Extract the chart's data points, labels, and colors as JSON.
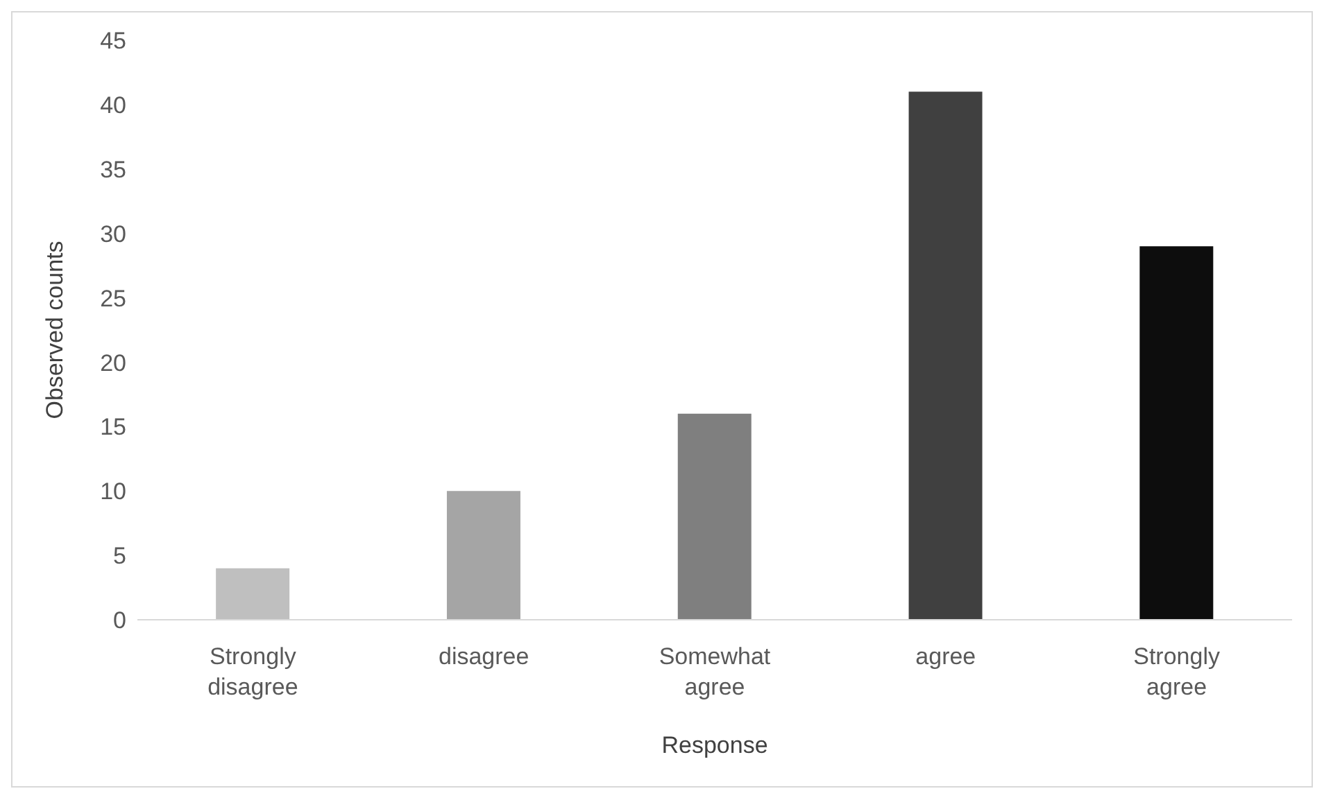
{
  "chart_data": {
    "type": "bar",
    "xlabel": "Response",
    "ylabel": "Observed counts",
    "categories": [
      "Strongly disagree",
      "disagree",
      "Somewhat agree",
      "agree",
      "Strongly agree"
    ],
    "values": [
      4,
      10,
      16,
      41,
      29
    ],
    "colors": [
      "#bfbfbf",
      "#a5a5a5",
      "#7f7f7f",
      "#404040",
      "#0d0d0d"
    ],
    "ylim": [
      0,
      45
    ],
    "yticks": [
      0,
      5,
      10,
      15,
      20,
      25,
      30,
      35,
      40,
      45
    ],
    "grid": false
  }
}
